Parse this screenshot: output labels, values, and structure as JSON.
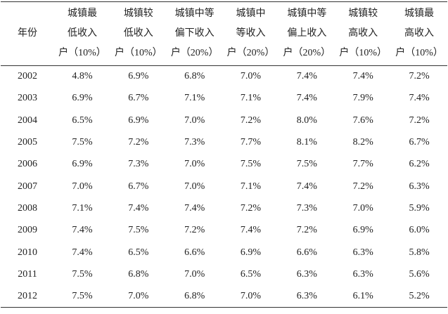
{
  "table": {
    "header": [
      [
        "年份"
      ],
      [
        "城镇最",
        "低收入",
        "户（10%）"
      ],
      [
        "城镇较",
        "低收入",
        "户（10%）"
      ],
      [
        "城镇中等",
        "偏下收入",
        "户（20%）"
      ],
      [
        "城镇中",
        "等收入",
        "户（20%）"
      ],
      [
        "城镇中等",
        "偏上收入",
        "户（20%）"
      ],
      [
        "城镇较",
        "高收入",
        "户（10%）"
      ],
      [
        "城镇最",
        "高收入",
        "户（10%）"
      ]
    ],
    "rows": [
      [
        "2002",
        "4.8%",
        "6.9%",
        "6.8%",
        "7.0%",
        "7.4%",
        "7.4%",
        "7.2%"
      ],
      [
        "2003",
        "6.9%",
        "6.7%",
        "7.1%",
        "7.1%",
        "7.4%",
        "7.9%",
        "7.4%"
      ],
      [
        "2004",
        "6.5%",
        "6.9%",
        "7.0%",
        "7.2%",
        "8.0%",
        "7.6%",
        "7.2%"
      ],
      [
        "2005",
        "7.5%",
        "7.2%",
        "7.3%",
        "7.7%",
        "8.1%",
        "8.2%",
        "6.7%"
      ],
      [
        "2006",
        "6.9%",
        "7.3%",
        "7.0%",
        "7.5%",
        "7.5%",
        "7.7%",
        "6.2%"
      ],
      [
        "2007",
        "7.0%",
        "6.7%",
        "7.0%",
        "7.1%",
        "7.4%",
        "7.2%",
        "6.3%"
      ],
      [
        "2008",
        "7.1%",
        "7.4%",
        "7.4%",
        "7.2%",
        "7.3%",
        "7.0%",
        "5.9%"
      ],
      [
        "2009",
        "7.4%",
        "7.5%",
        "7.2%",
        "7.4%",
        "7.2%",
        "6.9%",
        "6.0%"
      ],
      [
        "2010",
        "7.4%",
        "6.5%",
        "6.6%",
        "6.9%",
        "6.6%",
        "6.3%",
        "5.8%"
      ],
      [
        "2011",
        "7.5%",
        "6.8%",
        "7.0%",
        "6.5%",
        "6.3%",
        "6.3%",
        "5.6%"
      ],
      [
        "2012",
        "7.5%",
        "7.0%",
        "6.8%",
        "7.0%",
        "6.3%",
        "6.1%",
        "5.2%"
      ]
    ]
  }
}
